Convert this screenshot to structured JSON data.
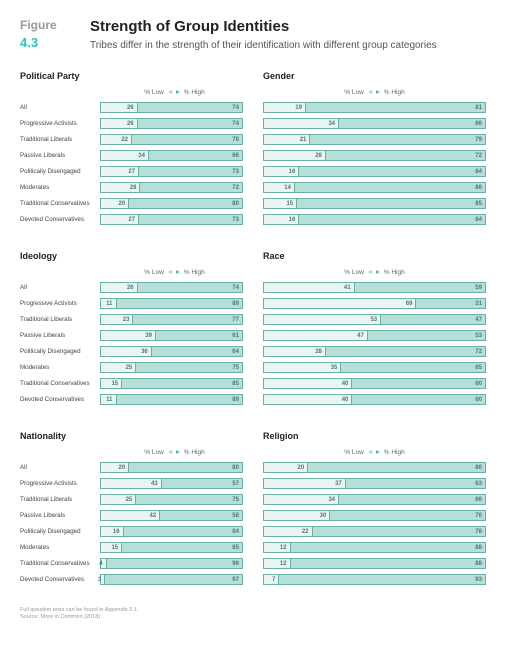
{
  "figure": {
    "label": "Figure",
    "number": "4.3"
  },
  "title": "Strength of Group Identities",
  "subtitle": "Tribes differ in the strength of their identification with different group categories",
  "legend": {
    "low": "% Low",
    "high": "% High"
  },
  "colors": {
    "low_fill": "#e8f5f3",
    "high_fill": "#b5e0da",
    "border": "#6ab0a7",
    "accent": "#2ec4b6",
    "text": "#4a7a73"
  },
  "rowLabels": [
    "All",
    "Progressive Activists",
    "Traditional Liberals",
    "Passive Liberals",
    "Politically Disengaged",
    "Moderates",
    "Traditional Conservatives",
    "Devoted Conservatives"
  ],
  "charts": [
    {
      "title": "Political Party",
      "showLabels": true,
      "rows": [
        {
          "low": 26,
          "high": 74
        },
        {
          "low": 26,
          "high": 74
        },
        {
          "low": 22,
          "high": 78
        },
        {
          "low": 34,
          "high": 66
        },
        {
          "low": 27,
          "high": 73
        },
        {
          "low": 28,
          "high": 72
        },
        {
          "low": 20,
          "high": 80
        },
        {
          "low": 27,
          "high": 73
        }
      ]
    },
    {
      "title": "Gender",
      "showLabels": false,
      "rows": [
        {
          "low": 19,
          "high": 81
        },
        {
          "low": 34,
          "high": 66
        },
        {
          "low": 21,
          "high": 79
        },
        {
          "low": 28,
          "high": 72
        },
        {
          "low": 16,
          "high": 84
        },
        {
          "low": 14,
          "high": 86
        },
        {
          "low": 15,
          "high": 85
        },
        {
          "low": 16,
          "high": 84
        }
      ]
    },
    {
      "title": "Ideology",
      "showLabels": true,
      "rows": [
        {
          "low": 26,
          "high": 74
        },
        {
          "low": 11,
          "high": 89
        },
        {
          "low": 23,
          "high": 77
        },
        {
          "low": 39,
          "high": 61
        },
        {
          "low": 36,
          "high": 64
        },
        {
          "low": 25,
          "high": 75
        },
        {
          "low": 15,
          "high": 85
        },
        {
          "low": 11,
          "high": 89
        }
      ]
    },
    {
      "title": "Race",
      "showLabels": false,
      "rows": [
        {
          "low": 41,
          "high": 59
        },
        {
          "low": 69,
          "high": 31
        },
        {
          "low": 53,
          "high": 47
        },
        {
          "low": 47,
          "high": 53
        },
        {
          "low": 28,
          "high": 72
        },
        {
          "low": 35,
          "high": 65
        },
        {
          "low": 40,
          "high": 60
        },
        {
          "low": 40,
          "high": 60
        }
      ]
    },
    {
      "title": "Nationality",
      "showLabels": true,
      "rows": [
        {
          "low": 20,
          "high": 80
        },
        {
          "low": 43,
          "high": 57
        },
        {
          "low": 25,
          "high": 75
        },
        {
          "low": 42,
          "high": 58
        },
        {
          "low": 16,
          "high": 84
        },
        {
          "low": 15,
          "high": 85
        },
        {
          "low": 4,
          "high": 96
        },
        {
          "low": 3,
          "high": 97
        }
      ]
    },
    {
      "title": "Religion",
      "showLabels": false,
      "rows": [
        {
          "low": 20,
          "high": 80
        },
        {
          "low": 37,
          "high": 63
        },
        {
          "low": 34,
          "high": 66
        },
        {
          "low": 30,
          "high": 70
        },
        {
          "low": 22,
          "high": 78
        },
        {
          "low": 12,
          "high": 88
        },
        {
          "low": 12,
          "high": 88
        },
        {
          "low": 7,
          "high": 93
        }
      ]
    }
  ],
  "footer": {
    "line1": "Full question texts can be found in Appendix 2.1.",
    "line2": "Source: More in Common (2018)"
  }
}
